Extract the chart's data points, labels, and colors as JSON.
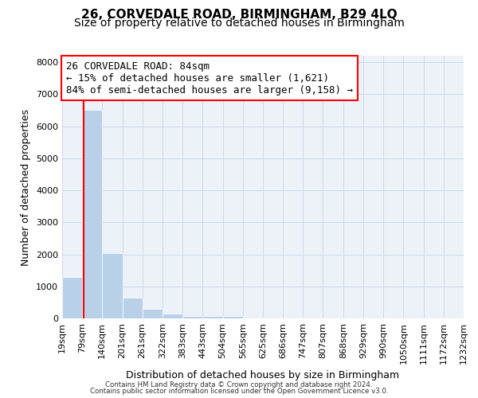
{
  "title1": "26, CORVEDALE ROAD, BIRMINGHAM, B29 4LQ",
  "title2": "Size of property relative to detached houses in Birmingham",
  "xlabel": "Distribution of detached houses by size in Birmingham",
  "ylabel": "Number of detached properties",
  "footer1": "Contains HM Land Registry data © Crown copyright and database right 2024.",
  "footer2": "Contains public sector information licensed under the Open Government Licence v3.0.",
  "annotation_line1": "26 CORVEDALE ROAD: 84sqm",
  "annotation_line2": "← 15% of detached houses are smaller (1,621)",
  "annotation_line3": "84% of semi-detached houses are larger (9,158) →",
  "bar_values": [
    1300,
    6500,
    2050,
    650,
    300,
    150,
    80,
    80,
    80,
    0,
    0,
    0,
    0,
    0,
    0,
    0,
    0,
    0,
    0,
    0
  ],
  "bin_edges": [
    19,
    79,
    140,
    201,
    261,
    322,
    383,
    443,
    504,
    565,
    625,
    686,
    747,
    807,
    868,
    929,
    990,
    1050,
    1111,
    1172,
    1232
  ],
  "bin_labels": [
    "19sqm",
    "79sqm",
    "140sqm",
    "201sqm",
    "261sqm",
    "322sqm",
    "383sqm",
    "443sqm",
    "504sqm",
    "565sqm",
    "625sqm",
    "686sqm",
    "747sqm",
    "807sqm",
    "868sqm",
    "929sqm",
    "990sqm",
    "1050sqm",
    "1111sqm",
    "1172sqm",
    "1232sqm"
  ],
  "bar_color": "#b8d0e8",
  "red_line_x": 84,
  "ylim": [
    0,
    8200
  ],
  "yticks": [
    0,
    1000,
    2000,
    3000,
    4000,
    5000,
    6000,
    7000,
    8000
  ],
  "grid_color": "#ccd8ea",
  "background_color": "#edf2f9",
  "title1_fontsize": 11,
  "title2_fontsize": 10,
  "annotation_fontsize": 9,
  "xlabel_fontsize": 9,
  "ylabel_fontsize": 9,
  "tick_fontsize": 8
}
